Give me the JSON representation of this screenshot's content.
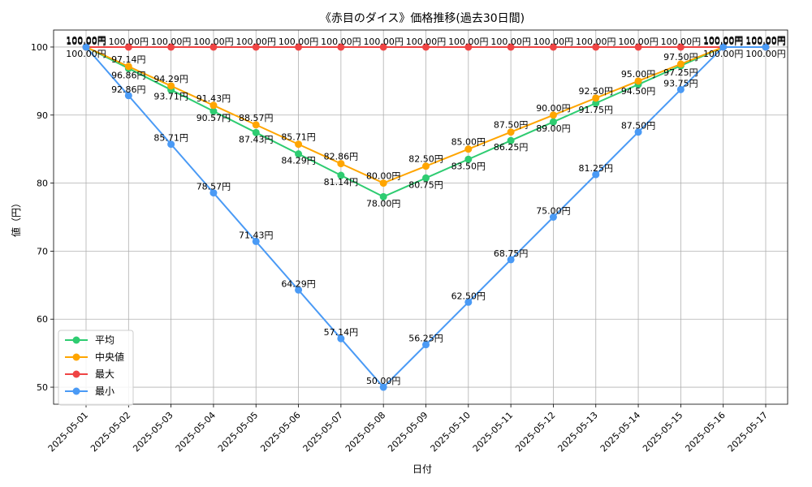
{
  "chart_data": {
    "type": "line",
    "title": "《赤目のダイス》価格推移(過去30日間)",
    "xlabel": "日付",
    "ylabel": "値（円）",
    "unit_suffix": "円",
    "ylim": [
      47.5,
      102.5
    ],
    "yticks": [
      50,
      60,
      70,
      80,
      90,
      100
    ],
    "grid": true,
    "legend_position": "lower-left",
    "categories": [
      "2025-05-01",
      "2025-05-02",
      "2025-05-03",
      "2025-05-04",
      "2025-05-05",
      "2025-05-06",
      "2025-05-07",
      "2025-05-08",
      "2025-05-09",
      "2025-05-10",
      "2025-05-11",
      "2025-05-12",
      "2025-05-13",
      "2025-05-14",
      "2025-05-15",
      "2025-05-16",
      "2025-05-17"
    ],
    "series": [
      {
        "name": "平均",
        "color": "#2ecc71",
        "values": [
          100.0,
          96.86,
          93.71,
          90.57,
          87.43,
          84.29,
          81.14,
          78.0,
          80.75,
          83.5,
          86.25,
          89.0,
          91.75,
          94.5,
          97.25,
          100.0,
          100.0
        ],
        "labels": [
          "100.00円",
          "96.86円",
          "93.71円",
          "90.57円",
          "87.43円",
          "84.29円",
          "81.14円",
          "78.00円",
          "80.75円",
          "83.50円",
          "86.25円",
          "89.00円",
          "91.75円",
          "94.50円",
          "97.25円",
          "100.00円",
          "100.00円"
        ]
      },
      {
        "name": "中央値",
        "color": "#ffa500",
        "values": [
          100.0,
          97.14,
          94.29,
          91.43,
          88.57,
          85.71,
          82.86,
          80.0,
          82.5,
          85.0,
          87.5,
          90.0,
          92.5,
          95.0,
          97.5,
          100.0,
          100.0
        ],
        "labels": [
          "100.00円",
          "97.14円",
          "94.29円",
          "91.43円",
          "88.57円",
          "85.71円",
          "82.86円",
          "80.00円",
          "82.50円",
          "85.00円",
          "87.50円",
          "90.00円",
          "92.50円",
          "95.00円",
          "97.50円",
          "100.00円",
          "100.00円"
        ]
      },
      {
        "name": "最大",
        "color": "#ef4444",
        "values": [
          100.0,
          100.0,
          100.0,
          100.0,
          100.0,
          100.0,
          100.0,
          100.0,
          100.0,
          100.0,
          100.0,
          100.0,
          100.0,
          100.0,
          100.0,
          100.0,
          100.0
        ],
        "labels": [
          "100.00円",
          "100.00円",
          "100.00円",
          "100.00円",
          "100.00円",
          "100.00円",
          "100.00円",
          "100.00円",
          "100.00円",
          "100.00円",
          "100.00円",
          "100.00円",
          "100.00円",
          "100.00円",
          "100.00円",
          "100.00円",
          "100.00円"
        ]
      },
      {
        "name": "最小",
        "color": "#4a9af5",
        "values": [
          100.0,
          92.86,
          85.71,
          78.57,
          71.43,
          64.29,
          57.14,
          50.0,
          56.25,
          62.5,
          68.75,
          75.0,
          81.25,
          87.5,
          93.75,
          100.0,
          100.0
        ],
        "labels": [
          "100.00円",
          "92.86円",
          "85.71円",
          "78.57円",
          "71.43円",
          "64.29円",
          "57.14円",
          "50.00円",
          "56.25円",
          "62.50円",
          "68.75円",
          "75.00円",
          "81.25円",
          "87.50円",
          "93.75円",
          "100.00円",
          "100.00円"
        ]
      }
    ]
  }
}
